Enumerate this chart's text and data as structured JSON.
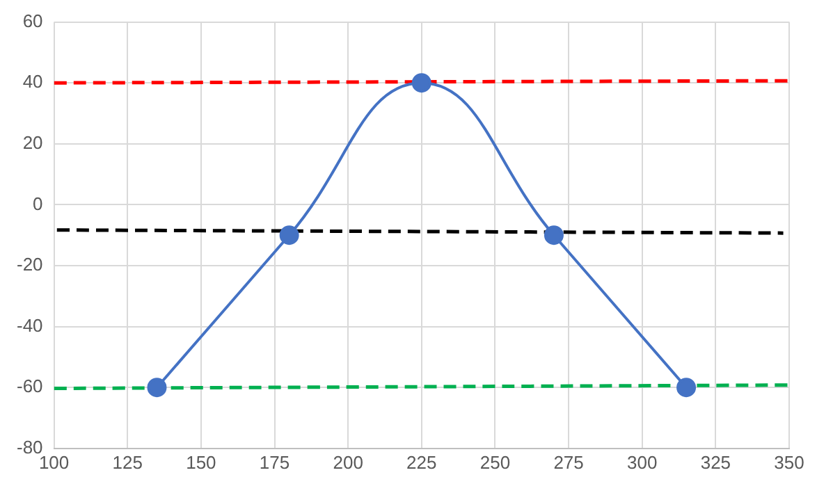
{
  "chart_data": {
    "type": "line",
    "xlim": [
      100,
      350
    ],
    "xticks": [
      100,
      125,
      150,
      175,
      200,
      225,
      250,
      275,
      300,
      325,
      350
    ],
    "ylim": [
      -80,
      60
    ],
    "yticks": [
      -80,
      -60,
      -40,
      -20,
      0,
      20,
      40,
      60
    ],
    "grid": true,
    "legend": false,
    "series": [
      {
        "color": "#4472c4",
        "x": [
          135,
          180,
          225,
          270,
          315
        ],
        "values": [
          -60,
          -10,
          40,
          -10,
          -60
        ],
        "marker": "circle",
        "line_style": "solid"
      },
      {
        "color": "#ff0000",
        "x": [
          100,
          350
        ],
        "values": [
          40,
          40.7
        ],
        "marker": "none",
        "line_style": "dashed"
      },
      {
        "color": "#000000",
        "x": [
          101,
          348
        ],
        "values": [
          -8.3,
          -9.3
        ],
        "marker": "none",
        "line_style": "dashed"
      },
      {
        "color": "#00b050",
        "x": [
          100,
          350
        ],
        "values": [
          -60.3,
          -59.2
        ],
        "marker": "none",
        "line_style": "dashed"
      }
    ]
  }
}
